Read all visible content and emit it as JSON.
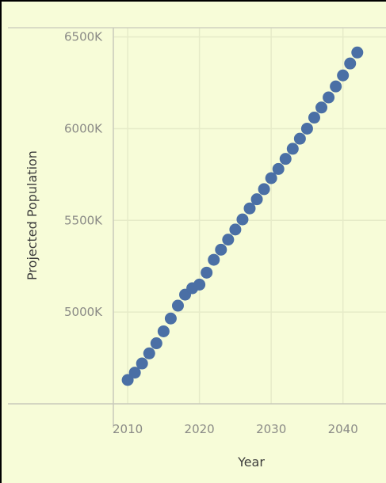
{
  "chart_data": {
    "type": "scatter",
    "title": "",
    "xlabel": "Year",
    "ylabel": "Projected Population",
    "xlim": [
      2008,
      2046
    ],
    "ylim": [
      4500,
      6550
    ],
    "x_ticks": [
      2010,
      2020,
      2030,
      2040
    ],
    "y_ticks": [
      5000,
      5500,
      6000,
      6500
    ],
    "y_tick_labels": [
      "5000K",
      "5500K",
      "6000K",
      "6500K"
    ],
    "grid": true,
    "marker_color": "#4a6fa5",
    "series": [
      {
        "name": "",
        "points": [
          [
            2010,
            4630
          ],
          [
            2011,
            4670
          ],
          [
            2012,
            4720
          ],
          [
            2013,
            4775
          ],
          [
            2014,
            4830
          ],
          [
            2015,
            4895
          ],
          [
            2016,
            4965
          ],
          [
            2017,
            5035
          ],
          [
            2018,
            5095
          ],
          [
            2019,
            5130
          ],
          [
            2020,
            5150
          ],
          [
            2021,
            5215
          ],
          [
            2022,
            5285
          ],
          [
            2023,
            5340
          ],
          [
            2024,
            5395
          ],
          [
            2025,
            5450
          ],
          [
            2026,
            5505
          ],
          [
            2027,
            5565
          ],
          [
            2028,
            5615
          ],
          [
            2029,
            5670
          ],
          [
            2030,
            5730
          ],
          [
            2031,
            5780
          ],
          [
            2032,
            5835
          ],
          [
            2033,
            5890
          ],
          [
            2034,
            5945
          ],
          [
            2035,
            6000
          ],
          [
            2036,
            6060
          ],
          [
            2037,
            6115
          ],
          [
            2038,
            6170
          ],
          [
            2039,
            6230
          ],
          [
            2040,
            6290
          ],
          [
            2041,
            6355
          ],
          [
            2042,
            6415
          ]
        ]
      }
    ]
  }
}
